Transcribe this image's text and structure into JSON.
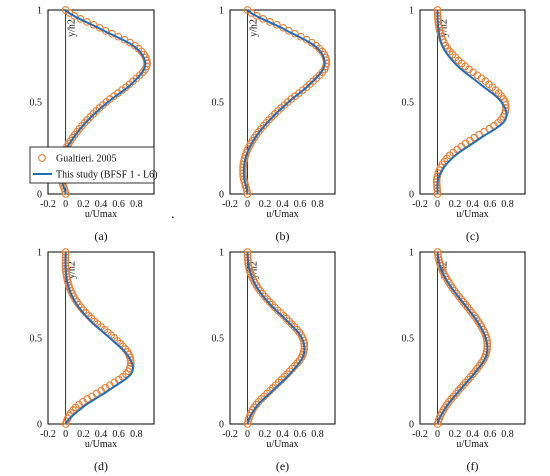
{
  "figure": {
    "colors": {
      "study": "#1f6fbf",
      "ref": "#ed7d31",
      "axis": "#000000"
    },
    "stray_mark": "."
  },
  "chart_data": [
    {
      "type": "line",
      "panel": "(a)",
      "xlabel": "u/Umax",
      "ylabel": "y/h2",
      "xlim": [
        -0.2,
        1.0
      ],
      "ylim": [
        0,
        1
      ],
      "xticks": [
        "-0.2",
        "0",
        "0.2",
        "0.4",
        "0.6",
        "0.8"
      ],
      "yticks": [
        "0",
        "0.5",
        "1"
      ],
      "legend": {
        "position": "bottom-left",
        "entries": [
          "Gualtieri. 2005",
          "This study (BFSF 1 - L6)"
        ]
      },
      "series": [
        {
          "name": "This study (BFSF 1 - L6)",
          "style": "line",
          "y": [
            0,
            0.1,
            0.2,
            0.3,
            0.4,
            0.5,
            0.6,
            0.7,
            0.8,
            0.9,
            1.0
          ],
          "x": [
            0.0,
            -0.06,
            -0.04,
            0.08,
            0.25,
            0.48,
            0.75,
            0.9,
            0.78,
            0.38,
            0.0
          ]
        },
        {
          "name": "Gualtieri. 2005",
          "style": "markers",
          "y": [
            0,
            0.1,
            0.2,
            0.3,
            0.4,
            0.5,
            0.6,
            0.7,
            0.8,
            0.9,
            1.0
          ],
          "x": [
            0.0,
            -0.06,
            -0.04,
            0.07,
            0.24,
            0.46,
            0.73,
            0.92,
            0.8,
            0.4,
            0.0
          ]
        }
      ]
    },
    {
      "type": "line",
      "panel": "(b)",
      "xlabel": "u/Umax",
      "ylabel": "y/h2",
      "xlim": [
        -0.2,
        1.0
      ],
      "ylim": [
        0,
        1
      ],
      "xticks": [
        "-0.2",
        "0",
        "0.2",
        "0.4",
        "0.6",
        "0.8"
      ],
      "yticks": [
        "0",
        "0.5",
        "1"
      ],
      "series": [
        {
          "name": "This study (BFSF 1 - L6)",
          "style": "line",
          "y": [
            0,
            0.1,
            0.2,
            0.3,
            0.4,
            0.5,
            0.6,
            0.7,
            0.8,
            0.9,
            1.0
          ],
          "x": [
            0.0,
            -0.04,
            -0.02,
            0.08,
            0.25,
            0.47,
            0.72,
            0.88,
            0.78,
            0.4,
            0.0
          ]
        },
        {
          "name": "Gualtieri. 2005",
          "style": "markers",
          "y": [
            0,
            0.1,
            0.2,
            0.3,
            0.4,
            0.5,
            0.6,
            0.7,
            0.8,
            0.9,
            1.0
          ],
          "x": [
            0.0,
            -0.05,
            -0.03,
            0.07,
            0.24,
            0.46,
            0.72,
            0.9,
            0.8,
            0.42,
            0.0
          ]
        }
      ]
    },
    {
      "type": "line",
      "panel": "(c)",
      "xlabel": "u/Umax",
      "ylabel": "y/h2",
      "xlim": [
        -0.2,
        1.0
      ],
      "ylim": [
        0,
        1
      ],
      "xticks": [
        "-0.2",
        "0",
        "0.2",
        "0.4",
        "0.6",
        "0.8"
      ],
      "yticks": [
        "0",
        "0.5",
        "1"
      ],
      "series": [
        {
          "name": "This study (BFSF 1 - L6)",
          "style": "line",
          "y": [
            0,
            0.1,
            0.2,
            0.3,
            0.4,
            0.5,
            0.6,
            0.7,
            0.8,
            0.9,
            1.0
          ],
          "x": [
            0.0,
            0.02,
            0.18,
            0.48,
            0.77,
            0.73,
            0.48,
            0.22,
            0.06,
            0.01,
            0.0
          ]
        },
        {
          "name": "Gualtieri. 2005",
          "style": "markers",
          "y": [
            0,
            0.1,
            0.2,
            0.3,
            0.4,
            0.5,
            0.6,
            0.7,
            0.8,
            0.9,
            1.0
          ],
          "x": [
            0.0,
            0.0,
            0.12,
            0.4,
            0.72,
            0.77,
            0.58,
            0.3,
            0.1,
            0.02,
            0.0
          ]
        }
      ]
    },
    {
      "type": "line",
      "panel": "(d)",
      "xlabel": "u/Umax",
      "ylabel": "y/h2",
      "xlim": [
        -0.2,
        1.0
      ],
      "ylim": [
        0,
        1
      ],
      "xticks": [
        "-0.2",
        "0",
        "0.2",
        "0.4",
        "0.6",
        "0.8"
      ],
      "yticks": [
        "0",
        "0.5",
        "1"
      ],
      "series": [
        {
          "name": "This study (BFSF 1 - L6)",
          "style": "line",
          "y": [
            0,
            0.1,
            0.2,
            0.3,
            0.4,
            0.5,
            0.6,
            0.7,
            0.8,
            0.9,
            1.0
          ],
          "x": [
            0.0,
            0.2,
            0.5,
            0.75,
            0.7,
            0.5,
            0.28,
            0.12,
            0.03,
            0.0,
            0.0
          ]
        },
        {
          "name": "Gualtieri. 2005",
          "style": "markers",
          "y": [
            0,
            0.1,
            0.2,
            0.3,
            0.4,
            0.5,
            0.6,
            0.7,
            0.8,
            0.9,
            1.0
          ],
          "x": [
            0.0,
            0.12,
            0.42,
            0.7,
            0.72,
            0.55,
            0.32,
            0.14,
            0.04,
            0.0,
            0.0
          ]
        }
      ]
    },
    {
      "type": "line",
      "panel": "(e)",
      "xlabel": "u/Umax",
      "ylabel": "y/h2",
      "xlim": [
        -0.2,
        1.0
      ],
      "ylim": [
        0,
        1
      ],
      "xticks": [
        "-0.2",
        "0",
        "0.2",
        "0.4",
        "0.6",
        "0.8"
      ],
      "yticks": [
        "0",
        "0.5",
        "1"
      ],
      "series": [
        {
          "name": "This study (BFSF 1 - L6)",
          "style": "line",
          "y": [
            0,
            0.1,
            0.2,
            0.3,
            0.4,
            0.5,
            0.6,
            0.7,
            0.8,
            0.9,
            1.0
          ],
          "x": [
            0.0,
            0.1,
            0.3,
            0.5,
            0.64,
            0.62,
            0.45,
            0.25,
            0.1,
            0.02,
            0.0
          ]
        },
        {
          "name": "Gualtieri. 2005",
          "style": "markers",
          "y": [
            0,
            0.1,
            0.2,
            0.3,
            0.4,
            0.5,
            0.6,
            0.7,
            0.8,
            0.9,
            1.0
          ],
          "x": [
            0.0,
            0.08,
            0.27,
            0.47,
            0.63,
            0.63,
            0.47,
            0.27,
            0.11,
            0.02,
            0.0
          ]
        }
      ]
    },
    {
      "type": "line",
      "panel": "(f)",
      "xlabel": "u/Umax",
      "ylabel": "y/h2",
      "xlim": [
        -0.2,
        1.0
      ],
      "ylim": [
        0,
        1
      ],
      "xticks": [
        "-0.2",
        "0",
        "0.2",
        "0.4",
        "0.6",
        "0.8"
      ],
      "yticks": [
        "0",
        "0.5",
        "1"
      ],
      "series": [
        {
          "name": "This study (BFSF 1 - L6)",
          "style": "line",
          "y": [
            0,
            0.1,
            0.2,
            0.3,
            0.4,
            0.5,
            0.6,
            0.7,
            0.8,
            0.9,
            1.0
          ],
          "x": [
            0.0,
            0.1,
            0.26,
            0.43,
            0.56,
            0.55,
            0.45,
            0.3,
            0.15,
            0.04,
            0.0
          ]
        },
        {
          "name": "Gualtieri. 2005",
          "style": "markers",
          "y": [
            0,
            0.1,
            0.2,
            0.3,
            0.4,
            0.5,
            0.6,
            0.7,
            0.8,
            0.9,
            1.0
          ],
          "x": [
            0.0,
            0.09,
            0.25,
            0.42,
            0.55,
            0.56,
            0.46,
            0.31,
            0.16,
            0.05,
            0.0
          ]
        }
      ]
    }
  ]
}
